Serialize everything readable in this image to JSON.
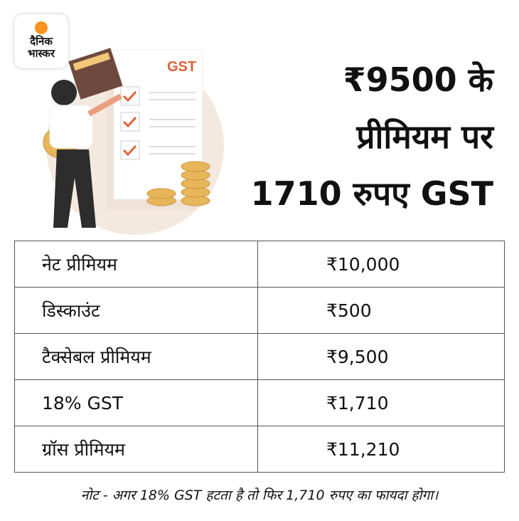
{
  "logo": {
    "line1": "दैनिक",
    "line2": "भास्कर"
  },
  "illustration": {
    "doc_label": "GST"
  },
  "headline": [
    "₹9500 के",
    "प्रीमियम पर",
    "1710 रुपए GST"
  ],
  "table": {
    "rows": [
      {
        "label": "नेट प्रीमियम",
        "value": "₹10,000"
      },
      {
        "label": "डिस्काउंट",
        "value": "₹500"
      },
      {
        "label": "टैक्सेबल प्रीमियम",
        "value": "₹9,500"
      },
      {
        "label": "18% GST",
        "value": "₹1,710"
      },
      {
        "label": "ग्रॉस प्रीमियम",
        "value": "₹11,210"
      }
    ]
  },
  "note": "नोट - अगर 18% GST हटता है तो फिर 1,710 रुपए का फायदा होगा।",
  "colors": {
    "logo_dot": "#f7931e",
    "accent": "#e0613a",
    "coin": "#e8b65a"
  }
}
